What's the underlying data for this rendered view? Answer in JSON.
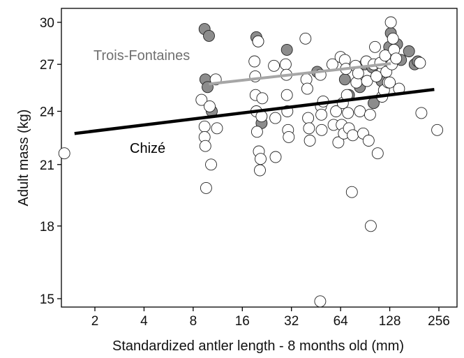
{
  "chart_data": {
    "type": "scatter",
    "xlabel": "Standardized antler length - 8 months old (mm)",
    "ylabel": "Adult mass (kg)",
    "x_scale": "log2",
    "y_scale": "log",
    "xlim": [
      1.1,
      300
    ],
    "ylim": [
      14.6,
      31
    ],
    "x_ticks": [
      2,
      4,
      8,
      16,
      32,
      64,
      128,
      256
    ],
    "y_ticks": [
      15,
      18,
      21,
      24,
      27,
      30
    ],
    "x_tick_labels": [
      "2",
      "4",
      "8",
      "16",
      "32",
      "64",
      "128",
      "256"
    ],
    "y_tick_labels": [
      "15",
      "18",
      "21",
      "24",
      "27",
      "30"
    ],
    "grid": false,
    "colors": {
      "trois_fontaines_points": "#8c8c8c",
      "chize_points": "#ffffff",
      "trois_fontaines_line": "#a6a6a6",
      "chize_line": "#000000",
      "trois_fontaines_label": "#707070",
      "chize_label": "#000000"
    },
    "annotations": [
      {
        "text": "Trois-Fontaines",
        "color": "#707070"
      },
      {
        "text": "Chizé",
        "color": "#000000"
      }
    ],
    "series": [
      {
        "group": "Trois-Fontaines",
        "points": [
          [
            9.4,
            29.5
          ],
          [
            10,
            29.0
          ],
          [
            9.5,
            26.0
          ],
          [
            9.8,
            25.5
          ],
          [
            10.4,
            24.0
          ],
          [
            19.5,
            28.9
          ],
          [
            20,
            28.6
          ],
          [
            21,
            23.3
          ],
          [
            30,
            28.0
          ],
          [
            46,
            26.5
          ],
          [
            68,
            26.0
          ],
          [
            72,
            25.0
          ],
          [
            84,
            25.5
          ],
          [
            90,
            27.0
          ],
          [
            100,
            26.8
          ],
          [
            102,
            24.5
          ],
          [
            114,
            25.9
          ],
          [
            121,
            27.0
          ],
          [
            127,
            28.2
          ],
          [
            130,
            29.2
          ],
          [
            142,
            28.4
          ],
          [
            150,
            27.3
          ],
          [
            168,
            27.9
          ],
          [
            182,
            27.0
          ],
          [
            190,
            27.2
          ]
        ]
      },
      {
        "group": "Chizé",
        "points": [
          [
            1.3,
            21.6
          ],
          [
            9,
            24.7
          ],
          [
            9.4,
            23.1
          ],
          [
            9.4,
            22.5
          ],
          [
            9.5,
            22.0
          ],
          [
            9.6,
            19.8
          ],
          [
            10.1,
            24.3
          ],
          [
            10.3,
            21.0
          ],
          [
            11,
            26.0
          ],
          [
            11.2,
            23.0
          ],
          [
            19,
            27.2
          ],
          [
            19.2,
            26.2
          ],
          [
            19.3,
            25.0
          ],
          [
            19.5,
            24.0
          ],
          [
            19.7,
            22.8
          ],
          [
            20,
            28.6
          ],
          [
            20.2,
            21.7
          ],
          [
            20.5,
            20.7
          ],
          [
            20.7,
            21.3
          ],
          [
            21,
            23.7
          ],
          [
            21.2,
            24.8
          ],
          [
            25,
            26.9
          ],
          [
            25.6,
            21.4
          ],
          [
            25.5,
            23.6
          ],
          [
            29.5,
            27.0
          ],
          [
            29.8,
            26.3
          ],
          [
            30,
            25.0
          ],
          [
            30.2,
            24.0
          ],
          [
            30.5,
            22.9
          ],
          [
            30.8,
            22.5
          ],
          [
            39,
            28.8
          ],
          [
            39.5,
            26.0
          ],
          [
            40,
            25.4
          ],
          [
            40.5,
            23.6
          ],
          [
            41,
            23.0
          ],
          [
            41.5,
            22.3
          ],
          [
            48,
            14.9
          ],
          [
            48.2,
            26.3
          ],
          [
            48.5,
            24.3
          ],
          [
            48.8,
            23.8
          ],
          [
            49,
            22.9
          ],
          [
            50,
            24.6
          ],
          [
            57,
            27.0
          ],
          [
            58,
            23.2
          ],
          [
            60,
            24.0
          ],
          [
            62,
            22.2
          ],
          [
            64,
            27.5
          ],
          [
            65,
            23.2
          ],
          [
            66,
            24.5
          ],
          [
            67,
            22.7
          ],
          [
            68,
            27.3
          ],
          [
            69,
            26.7
          ],
          [
            70,
            25.0
          ],
          [
            71,
            23.9
          ],
          [
            72,
            23.0
          ],
          [
            75,
            19.6
          ],
          [
            76,
            22.6
          ],
          [
            79,
            26.9
          ],
          [
            80,
            25.8
          ],
          [
            82,
            26.4
          ],
          [
            84,
            24.0
          ],
          [
            88,
            22.7
          ],
          [
            92,
            27.2
          ],
          [
            93,
            25.9
          ],
          [
            95,
            22.3
          ],
          [
            97,
            23.8
          ],
          [
            98,
            18.0
          ],
          [
            102,
            27.0
          ],
          [
            104,
            28.2
          ],
          [
            106,
            26.2
          ],
          [
            108,
            21.6
          ],
          [
            112,
            27.1
          ],
          [
            115,
            24.9
          ],
          [
            118,
            25.3
          ],
          [
            120,
            27.6
          ],
          [
            122,
            26.5
          ],
          [
            125,
            25.8
          ],
          [
            128,
            25.8
          ],
          [
            130,
            30.0
          ],
          [
            132,
            27.0
          ],
          [
            134,
            28.8
          ],
          [
            136,
            28.0
          ],
          [
            140,
            27.4
          ],
          [
            146,
            25.4
          ],
          [
            196,
            27.1
          ],
          [
            200,
            23.9
          ],
          [
            250,
            22.9
          ]
        ]
      }
    ],
    "lines": [
      {
        "group": "Trois-Fontaines",
        "x": [
          10,
          130
        ],
        "y": [
          25.7,
          27.05
        ]
      },
      {
        "group": "Chizé",
        "x": [
          1.5,
          240
        ],
        "y": [
          22.7,
          25.35
        ]
      }
    ]
  }
}
